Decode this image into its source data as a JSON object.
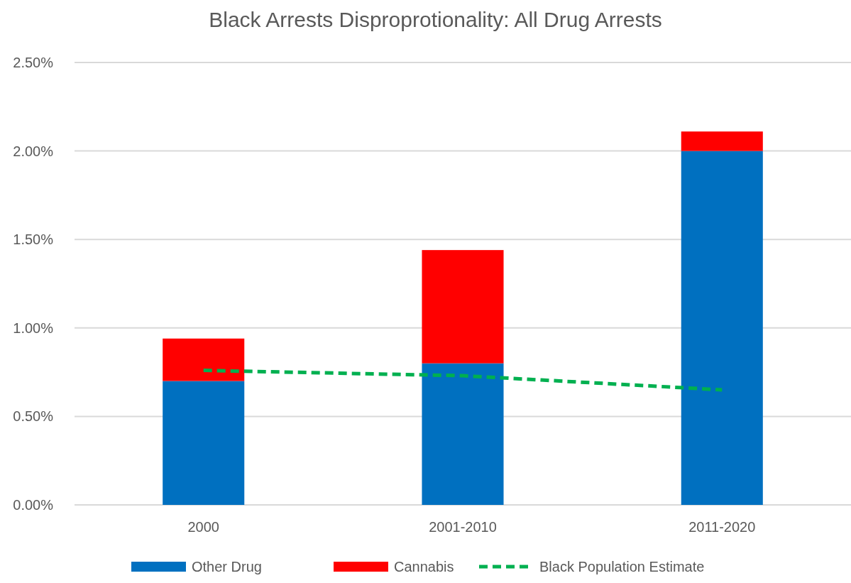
{
  "chart_data": {
    "type": "bar",
    "title": "Black Arrests Disproprotionality:  All Drug Arrests",
    "categories": [
      "2000",
      "2001-2010",
      "2011-2020"
    ],
    "stacked": true,
    "series": [
      {
        "name": "Other Drug",
        "color": "#0070c0",
        "values": [
          0.7,
          0.8,
          2.0
        ]
      },
      {
        "name": "Cannabis",
        "color": "#ff0000",
        "values": [
          0.24,
          0.64,
          0.11
        ]
      },
      {
        "name": "Black Population Estimate",
        "type": "line",
        "color": "#00b050",
        "line_style": "dashed",
        "values": [
          0.76,
          0.73,
          0.65
        ]
      }
    ],
    "ylim": [
      0,
      2.5
    ],
    "yticks": [
      {
        "value": 0,
        "label": "0.00%"
      },
      {
        "value": 0.5,
        "label": "0.50%"
      },
      {
        "value": 1,
        "label": "1.00%"
      },
      {
        "value": 1.5,
        "label": "1.50%"
      },
      {
        "value": 2,
        "label": "2.00%"
      },
      {
        "value": 2.5,
        "label": "2.50%"
      }
    ],
    "grid": "y",
    "legend": "bottom"
  }
}
